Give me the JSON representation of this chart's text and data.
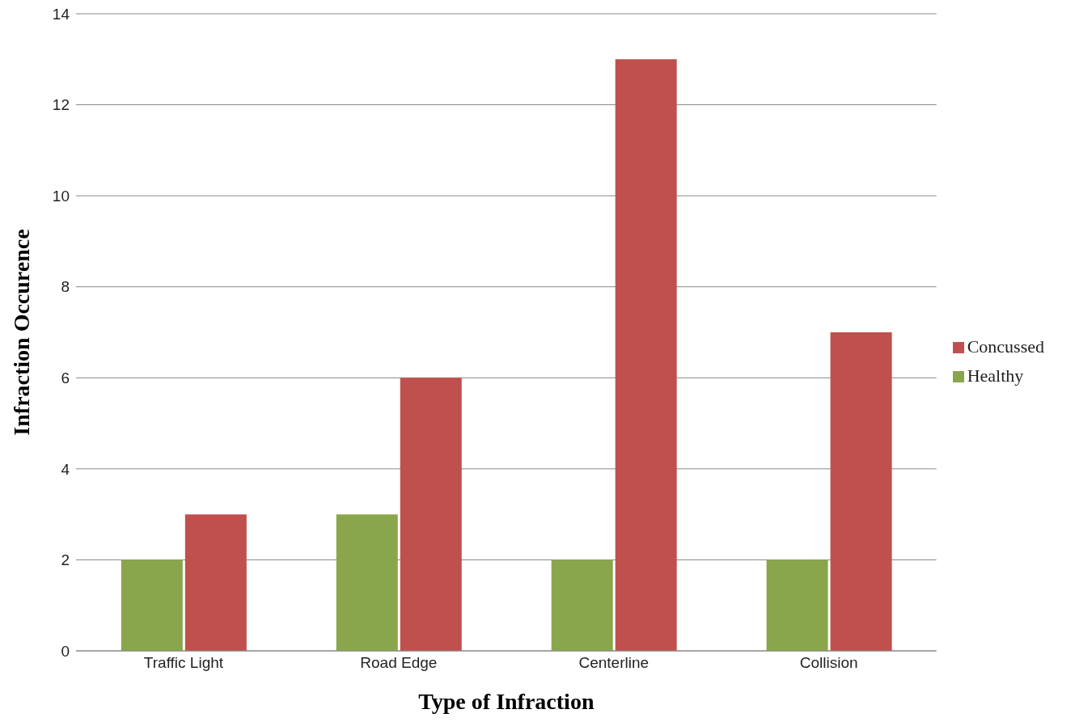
{
  "chart_data": {
    "type": "bar",
    "xlabel": "Type of Infraction",
    "ylabel": "Infraction Occurence",
    "categories": [
      "Traffic Light",
      "Road Edge",
      "Centerline",
      "Collision"
    ],
    "series": [
      {
        "name": "Healthy",
        "color": "#8aa64c",
        "values": [
          2,
          3,
          2,
          2
        ]
      },
      {
        "name": "Concussed",
        "color": "#c0504d",
        "values": [
          3,
          6,
          13,
          7
        ]
      }
    ],
    "ylim": [
      0,
      14
    ],
    "yticks": [
      0,
      2,
      4,
      6,
      8,
      10,
      12,
      14
    ],
    "grid": "y",
    "legend": "right"
  }
}
